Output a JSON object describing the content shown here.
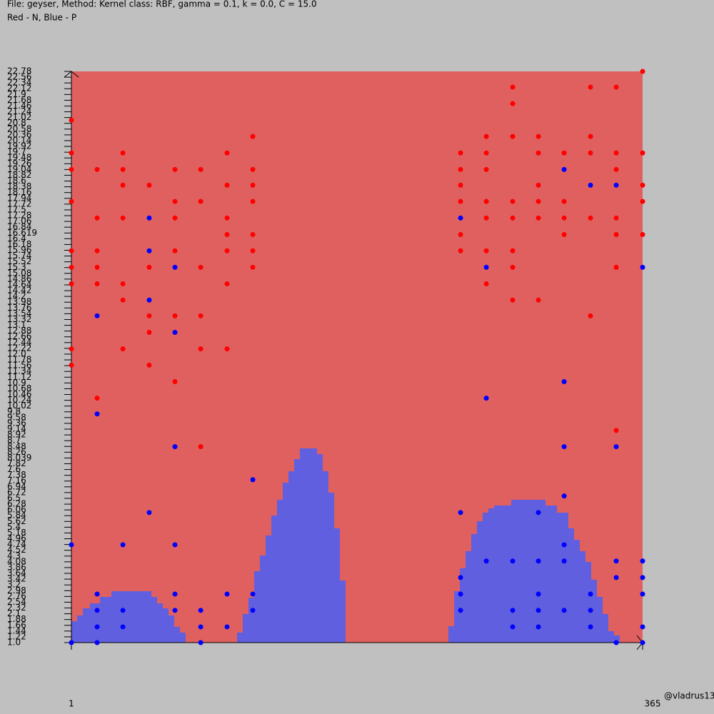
{
  "chart_data": {
    "type": "scatter",
    "title": "File: geyser, Method: Kernel class: RBF, gamma = 0.1, k = 0.0, C = 15.0",
    "subtitle": "Red - N, Blue - P",
    "watermark": "@vladrus13",
    "xlim": [
      1,
      365
    ],
    "xticks": [
      1,
      365
    ],
    "ylim": [
      1,
      22.78
    ],
    "yticks": [
      {
        "value": 1,
        "label": "1.0"
      },
      1.22,
      1.44,
      1.66,
      1.88,
      2.1,
      2.32,
      2.54,
      2.76,
      2.98,
      3.2,
      3.42,
      3.64,
      3.86,
      4.08,
      4.3,
      4.52,
      4.74,
      4.96,
      5.18,
      5.4,
      5.62,
      5.84,
      6.06,
      6.28,
      6.5,
      6.72,
      6.94,
      7.16,
      7.38,
      7.6,
      7.82,
      8.039,
      8.26,
      8.48,
      8.7,
      8.92,
      9.14,
      9.36,
      9.58,
      9.8,
      10.02,
      10.24,
      10.46,
      10.68,
      10.9,
      11.12,
      11.34,
      11.56,
      11.78,
      {
        "value": 12,
        "label": "12.0"
      },
      12.22,
      12.44,
      12.66,
      12.88,
      13.1,
      13.32,
      13.54,
      13.76,
      13.98,
      14.2,
      14.42,
      14.64,
      14.86,
      15.08,
      15.3,
      15.52,
      15.74,
      15.96,
      16.18,
      16.4,
      16.619,
      16.84,
      17.06,
      17.28,
      17.5,
      17.72,
      17.94,
      18.16,
      18.38,
      18.6,
      18.82,
      19.04,
      19.26,
      19.48,
      19.7,
      19.92,
      20.14,
      20.36,
      20.58,
      20.8,
      21.02,
      21.24,
      21.46,
      21.68,
      21.9,
      22.12,
      22.34,
      22.56,
      22.78
    ],
    "background_color": "#e06060",
    "series": [
      {
        "color": "#ff0000",
        "x": [
          1,
          1,
          1,
          1,
          1,
          1,
          1,
          1,
          1,
          17.4,
          17.4,
          17.4,
          17.4,
          17.4,
          17.4,
          33.8,
          33.8,
          33.8,
          33.8,
          33.8,
          33.8,
          33.8,
          50.6,
          50.6,
          50.6,
          50.6,
          50.6,
          67,
          67,
          67,
          67,
          67,
          67,
          83.4,
          83.4,
          83.4,
          83.4,
          83.4,
          83.4,
          100.2,
          100.2,
          100.2,
          100.2,
          100.2,
          100.2,
          100.2,
          116.6,
          116.6,
          116.6,
          116.6,
          116.6,
          116.6,
          116.6,
          249,
          249,
          249,
          249,
          249,
          249,
          265.4,
          265.4,
          265.4,
          265.4,
          265.4,
          265.4,
          265.4,
          282.2,
          282.2,
          282.2,
          282.2,
          282.2,
          282.2,
          282.2,
          282.2,
          298.6,
          298.6,
          298.6,
          298.6,
          298.6,
          298.6,
          315,
          315,
          315,
          315,
          331.8,
          331.8,
          331.8,
          331.8,
          331.8,
          348.2,
          348.2,
          348.2,
          348.2,
          348.2,
          348.2,
          348.2,
          365,
          365,
          365,
          365,
          365
        ],
        "y": [
          20.92,
          19.67,
          19.04,
          17.82,
          15.94,
          15.31,
          14.68,
          12.2,
          11.58,
          19.04,
          17.19,
          15.94,
          15.31,
          14.68,
          10.32,
          19.67,
          19.04,
          18.44,
          17.19,
          14.06,
          12.2,
          14.68,
          18.44,
          15.31,
          13.46,
          12.83,
          11.58,
          19.04,
          17.82,
          17.19,
          15.94,
          13.46,
          10.95,
          19.04,
          17.82,
          15.31,
          13.46,
          12.2,
          8.47,
          19.67,
          18.44,
          17.19,
          16.56,
          15.94,
          14.68,
          12.2,
          20.3,
          19.04,
          18.44,
          17.82,
          16.56,
          15.94,
          15.31,
          19.67,
          19.04,
          18.44,
          17.82,
          16.56,
          15.94,
          20.3,
          19.67,
          19.04,
          17.82,
          17.19,
          15.94,
          14.68,
          22.18,
          21.55,
          20.3,
          17.82,
          17.19,
          15.94,
          15.31,
          14.06,
          20.3,
          19.67,
          18.44,
          17.82,
          17.19,
          14.06,
          19.67,
          17.82,
          17.19,
          16.56,
          22.18,
          20.3,
          19.67,
          17.19,
          13.46,
          22.18,
          19.67,
          19.04,
          17.19,
          16.56,
          15.31,
          9.09,
          22.78,
          19.67,
          18.44,
          17.82,
          16.56
        ]
      },
      {
        "color": "#0000ff",
        "x": [
          1,
          1,
          17.4,
          17.4,
          17.4,
          17.4,
          17.4,
          17.4,
          33.8,
          33.8,
          33.8,
          50.6,
          50.6,
          50.6,
          50.6,
          67,
          67,
          67,
          67,
          67,
          67,
          83.4,
          83.4,
          83.4,
          100.2,
          100.2,
          116.6,
          116.6,
          116.6,
          249,
          249,
          249,
          249,
          249,
          265.4,
          265.4,
          265.4,
          282.2,
          282.2,
          282.2,
          298.6,
          298.6,
          298.6,
          298.6,
          298.6,
          315,
          315,
          315,
          315,
          315,
          315,
          315,
          331.8,
          331.8,
          331.8,
          331.8,
          348.2,
          348.2,
          348.2,
          348.2,
          348.2,
          365,
          365,
          365,
          365,
          365,
          365
        ],
        "y": [
          4.73,
          1,
          13.46,
          9.72,
          2.85,
          2.23,
          1.6,
          1,
          4.73,
          2.23,
          1.6,
          17.19,
          15.94,
          14.06,
          5.96,
          15.31,
          12.83,
          8.47,
          4.73,
          2.85,
          2.23,
          2.23,
          1.6,
          1,
          2.85,
          1.6,
          7.21,
          2.85,
          2.23,
          17.19,
          5.96,
          3.48,
          2.85,
          2.23,
          15.31,
          10.32,
          4.11,
          4.11,
          2.23,
          1.6,
          5.96,
          4.11,
          2.85,
          2.23,
          1.6,
          19.04,
          10.95,
          8.47,
          6.59,
          4.73,
          4.11,
          2.23,
          18.44,
          2.85,
          2.23,
          1.6,
          18.44,
          8.47,
          4.11,
          3.48,
          1,
          15.31,
          4.11,
          3.48,
          2.85,
          1.6,
          1
        ]
      }
    ]
  }
}
